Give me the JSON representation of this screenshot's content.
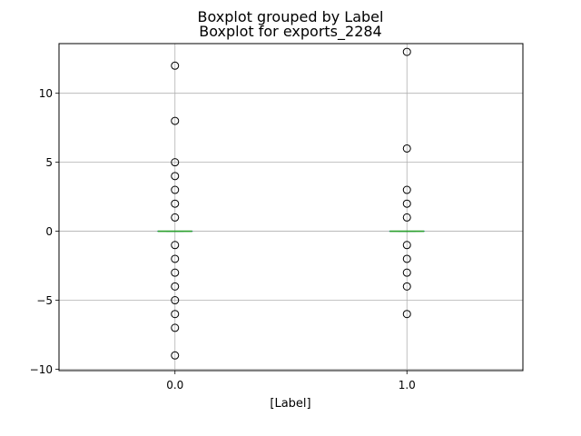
{
  "chart_data": {
    "type": "boxplot",
    "suptitle": "Boxplot grouped by Label",
    "title": "Boxplot for exports_2284",
    "xlabel": "[Label]",
    "ylabel": "",
    "categories": [
      "0.0",
      "1.0"
    ],
    "ylim": [
      -10.1,
      13.6
    ],
    "yticks": [
      -10,
      -5,
      0,
      5,
      10
    ],
    "grid": true,
    "groups": [
      {
        "label": "0.0",
        "q1": 0,
        "median": 0,
        "q3": 0,
        "whisker_low": 0,
        "whisker_high": 0,
        "outliers": [
          12,
          8,
          5,
          4,
          3,
          2,
          1,
          -1,
          -2,
          -3,
          -4,
          -5,
          -6,
          -7,
          -9
        ]
      },
      {
        "label": "1.0",
        "q1": 0,
        "median": 0,
        "q3": 0,
        "whisker_low": 0,
        "whisker_high": 0,
        "outliers": [
          13,
          6,
          3,
          2,
          1,
          -1,
          -2,
          -3,
          -4,
          -6
        ]
      }
    ],
    "colors": {
      "box": "#1f77b4",
      "median": "#2ca02c",
      "grid": "#b0b0b0",
      "outlier_edge": "#000000"
    }
  }
}
